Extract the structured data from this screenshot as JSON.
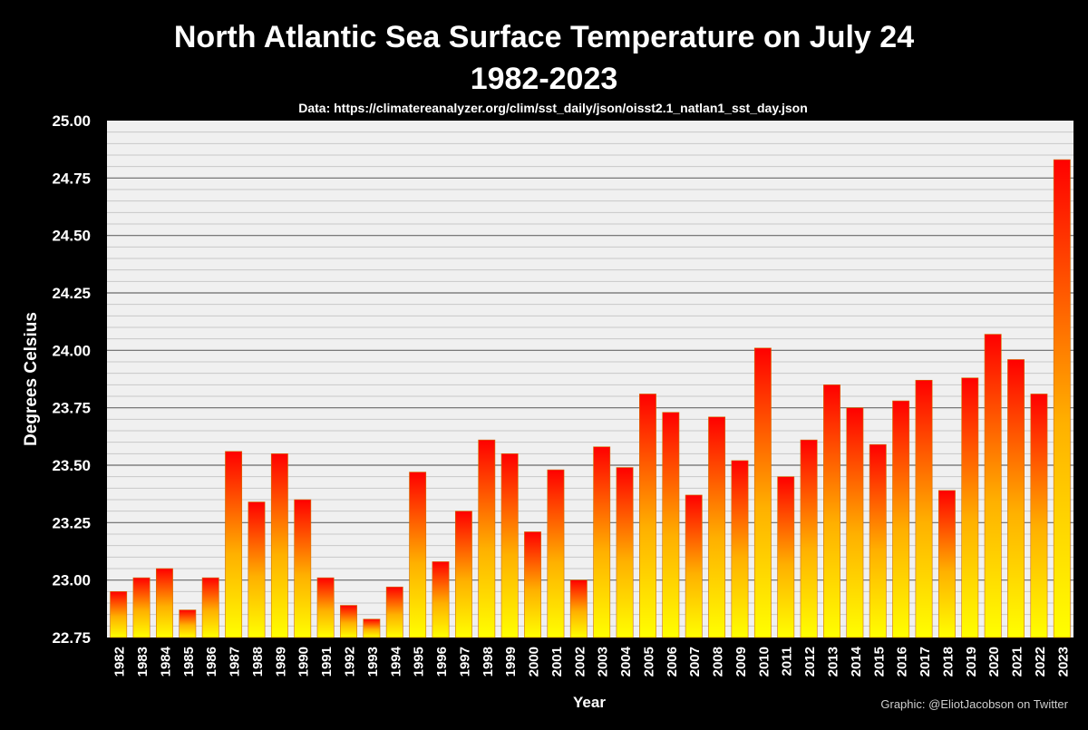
{
  "chart_data": {
    "type": "bar",
    "title": "North Atlantic Sea Surface Temperature on July 24",
    "subtitle": "1982-2023",
    "source": "Data: https://climatereanalyzer.org/clim/sst_daily/json/oisst2.1_natlan1_sst_day.json",
    "xlabel": "Year",
    "ylabel": "Degrees Celsius",
    "credit": "Graphic: @EliotJacobson on Twitter",
    "ylim": [
      22.75,
      25.0
    ],
    "ytick_labels": [
      "22.75",
      "23.00",
      "23.25",
      "23.50",
      "23.75",
      "24.00",
      "24.25",
      "24.50",
      "24.75",
      "25.00"
    ],
    "grid": true,
    "legend": "none",
    "categories": [
      "1982",
      "1983",
      "1984",
      "1985",
      "1986",
      "1987",
      "1988",
      "1989",
      "1990",
      "1991",
      "1992",
      "1993",
      "1994",
      "1995",
      "1996",
      "1997",
      "1998",
      "1999",
      "2000",
      "2001",
      "2002",
      "2003",
      "2004",
      "2005",
      "2006",
      "2007",
      "2008",
      "2009",
      "2010",
      "2011",
      "2012",
      "2013",
      "2014",
      "2015",
      "2016",
      "2017",
      "2018",
      "2019",
      "2020",
      "2021",
      "2022",
      "2023"
    ],
    "values": [
      22.95,
      23.01,
      23.05,
      22.87,
      23.01,
      23.56,
      23.34,
      23.55,
      23.35,
      23.01,
      22.89,
      22.83,
      22.97,
      23.47,
      23.08,
      23.3,
      23.61,
      23.55,
      23.21,
      23.48,
      23.0,
      23.58,
      23.49,
      23.81,
      23.73,
      23.37,
      23.71,
      23.52,
      24.01,
      23.45,
      23.61,
      23.85,
      23.75,
      23.59,
      23.78,
      23.87,
      23.39,
      23.88,
      24.07,
      23.96,
      23.81,
      24.83
    ],
    "colors": {
      "background": "#000000",
      "plot_background": "#f0f0f0",
      "bar_bottom": "#ffff00",
      "bar_mid": "#ffb000",
      "bar_top": "#ff0000"
    }
  }
}
